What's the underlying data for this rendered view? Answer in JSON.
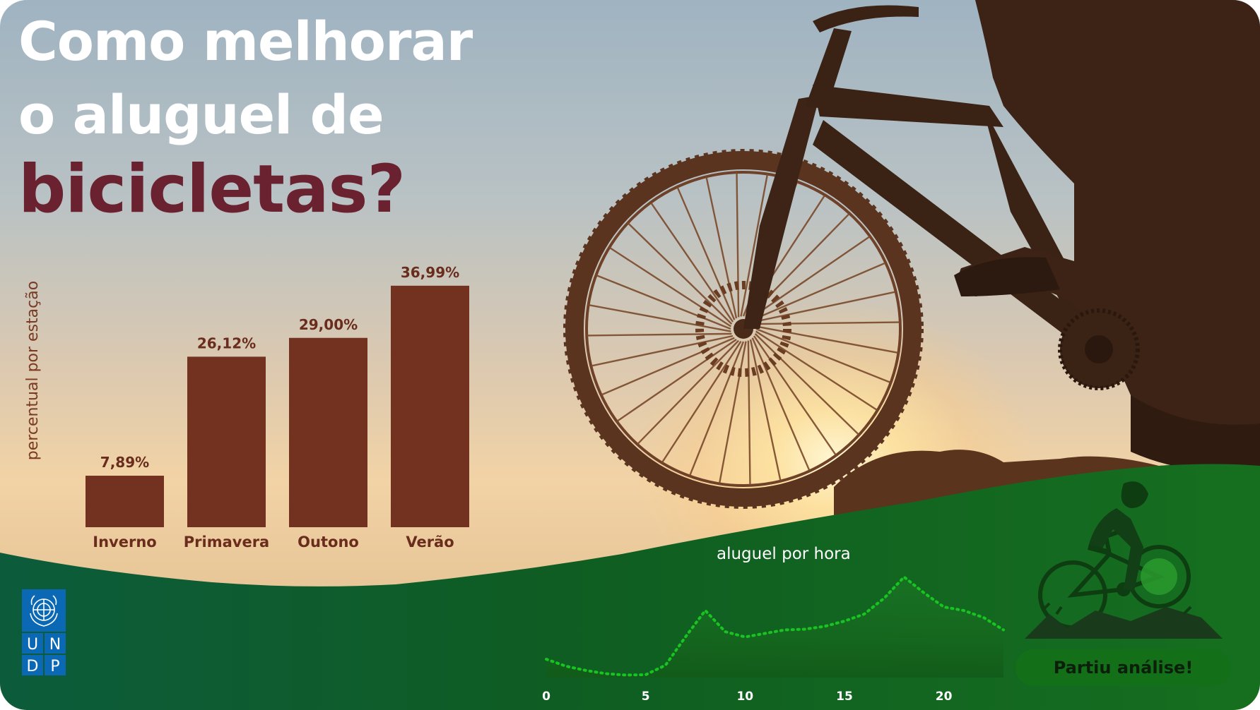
{
  "header": {
    "line1": "Como melhorar",
    "line2": "o aluguel de",
    "line3": "bicicletas?"
  },
  "colors": {
    "bar": "#72321f",
    "title_accent": "#6b2230",
    "hill_green": "#156b1f",
    "line_green": "#19c422"
  },
  "chart_data": [
    {
      "type": "bar",
      "ylabel": "percentual por estação",
      "categories": [
        "Inverno",
        "Primavera",
        "Outono",
        "Verão"
      ],
      "values": [
        7.89,
        26.12,
        29.0,
        36.99
      ],
      "value_labels": [
        "7,89%",
        "26,12%",
        "29,00%",
        "36,99%"
      ],
      "ylim": [
        0,
        40
      ],
      "grid": false,
      "legend": "none"
    },
    {
      "type": "area",
      "title": "aluguel por hora",
      "x": [
        0,
        1,
        2,
        3,
        4,
        5,
        6,
        7,
        8,
        9,
        10,
        11,
        12,
        13,
        14,
        15,
        16,
        17,
        18,
        19,
        20,
        21,
        22,
        23
      ],
      "values": [
        52,
        32,
        20,
        11,
        7,
        8,
        35,
        115,
        190,
        130,
        115,
        125,
        135,
        137,
        145,
        160,
        180,
        225,
        285,
        240,
        200,
        190,
        170,
        135
      ],
      "xticks": [
        "0",
        "5",
        "10",
        "15",
        "20"
      ],
      "ylim": [
        0,
        320
      ],
      "grid": false,
      "legend": "none"
    }
  ],
  "logo": {
    "lines": [
      "U",
      "N",
      "D",
      "P"
    ],
    "icon": "un-emblem-icon"
  },
  "cta": {
    "label": "Partiu análise!"
  },
  "icons": {
    "mountain_bike": "mountain-biker-icon"
  }
}
